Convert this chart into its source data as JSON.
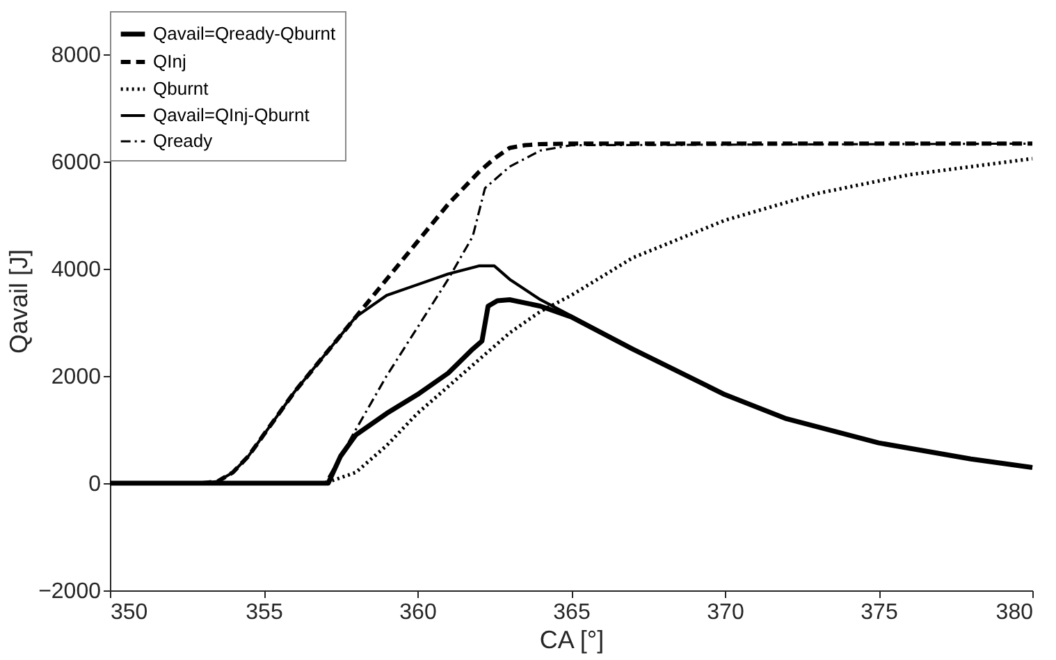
{
  "chart_data": {
    "type": "line",
    "xlabel": "CA [°]",
    "ylabel": "Qavail [J]",
    "xlim": [
      350,
      380
    ],
    "xticks": [
      350,
      355,
      360,
      365,
      370,
      375,
      380
    ],
    "ylim": [
      -2000,
      8800
    ],
    "yticks": [
      -2000,
      0,
      2000,
      4000,
      6000,
      8000
    ],
    "grid": false,
    "legend": "top left",
    "marker": "none",
    "series": [
      {
        "name": "Qavail=Qready-Qburnt",
        "color": "#000000",
        "line_style": "solid",
        "x": [
          350,
          355,
          357.1,
          357.5,
          358,
          359,
          360,
          361,
          361.8,
          362.1,
          362.3,
          362.6,
          363,
          364,
          365,
          367,
          370,
          372,
          375,
          378,
          380
        ],
        "values": [
          0,
          0,
          0,
          500,
          900,
          1300,
          1650,
          2050,
          2500,
          2650,
          3300,
          3400,
          3420,
          3300,
          3100,
          2500,
          1650,
          1200,
          750,
          450,
          290
        ]
      },
      {
        "name": "QInj",
        "color": "#000000",
        "line_style": "dashed",
        "x": [
          350,
          353,
          353.5,
          354,
          354.5,
          355,
          356,
          357,
          358,
          359,
          360,
          361,
          362,
          362.5,
          363,
          363.5,
          364,
          365,
          380
        ],
        "values": [
          0,
          0,
          30,
          200,
          500,
          900,
          1700,
          2400,
          3100,
          3800,
          4500,
          5200,
          5800,
          6050,
          6250,
          6300,
          6320,
          6330,
          6330
        ]
      },
      {
        "name": "Qburnt",
        "color": "#000000",
        "line_style": "dotted",
        "x": [
          350,
          357,
          358,
          359,
          360,
          361,
          362,
          363,
          364,
          365,
          367,
          370,
          373,
          376,
          380
        ],
        "values": [
          0,
          0,
          200,
          700,
          1300,
          1800,
          2300,
          2800,
          3200,
          3500,
          4200,
          4900,
          5400,
          5750,
          6050
        ]
      },
      {
        "name": "Qavail=QInj-Qburnt",
        "color": "#000000",
        "line_style": "solid",
        "x": [
          350,
          353,
          353.5,
          354,
          354.5,
          355,
          356,
          357,
          358,
          359,
          360,
          361,
          362,
          362.5,
          363,
          364,
          365,
          367,
          370,
          372,
          375,
          378,
          380
        ],
        "values": [
          0,
          0,
          30,
          200,
          500,
          900,
          1700,
          2400,
          3100,
          3500,
          3700,
          3900,
          4050,
          4050,
          3800,
          3420,
          3120,
          2500,
          1650,
          1200,
          750,
          450,
          290
        ]
      },
      {
        "name": "Qready",
        "color": "#000000",
        "line_style": "dashdot",
        "x": [
          350,
          357,
          358,
          359,
          360,
          361,
          361.8,
          362.2,
          363,
          364,
          365,
          380
        ],
        "values": [
          0,
          0,
          1000,
          2000,
          2900,
          3800,
          4600,
          5500,
          5900,
          6200,
          6300,
          6330
        ]
      }
    ]
  }
}
